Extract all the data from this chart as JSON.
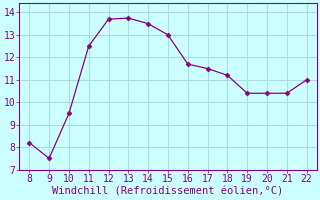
{
  "x": [
    8,
    9,
    10,
    11,
    12,
    13,
    14,
    15,
    16,
    17,
    18,
    19,
    20,
    21,
    22
  ],
  "y": [
    8.2,
    7.5,
    9.5,
    12.5,
    13.7,
    13.75,
    13.5,
    13.0,
    11.7,
    11.5,
    11.2,
    10.4,
    10.4,
    10.4,
    11.0
  ],
  "line_color": "#880088",
  "marker": "D",
  "marker_size": 2.5,
  "background_color": "#ccffff",
  "plot_bg_color": "#ccffff",
  "grid_color": "#aadddd",
  "border_color": "#880088",
  "xlabel": "Windchill (Refroidissement éolien,°C)",
  "xlabel_color": "#880088",
  "xlabel_fontsize": 7.5,
  "tick_color": "#880088",
  "tick_fontsize": 7,
  "xlim": [
    7.5,
    22.5
  ],
  "ylim": [
    7,
    14.4
  ],
  "xticks": [
    8,
    9,
    10,
    11,
    12,
    13,
    14,
    15,
    16,
    17,
    18,
    19,
    20,
    21,
    22
  ],
  "yticks": [
    7,
    8,
    9,
    10,
    11,
    12,
    13,
    14
  ]
}
